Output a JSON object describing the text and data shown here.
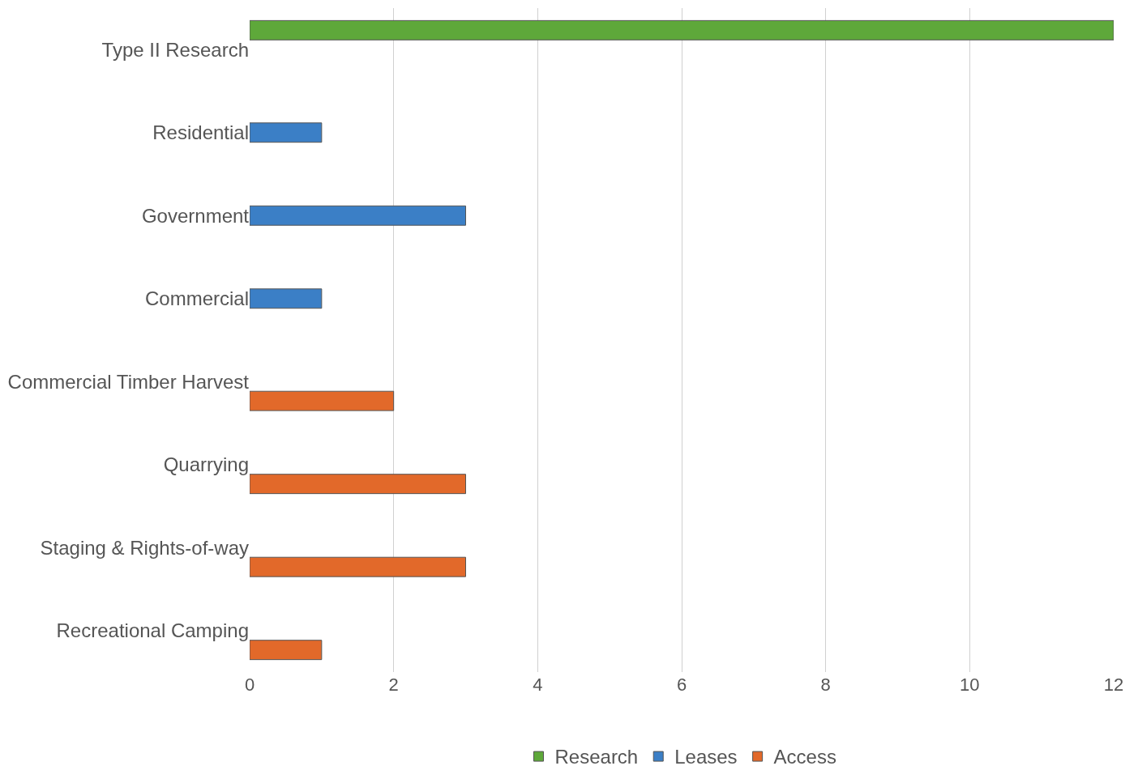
{
  "chart_data": {
    "type": "bar",
    "orientation": "horizontal",
    "categories": [
      "Type II Research",
      "Residential",
      "Government",
      "Commercial",
      "Commercial Timber Harvest",
      "Quarrying",
      "Staging & Rights-of-way",
      "Recreational Camping"
    ],
    "series": [
      {
        "name": "Research",
        "color": "#5ea83a",
        "values": [
          12,
          null,
          null,
          null,
          null,
          null,
          null,
          null
        ]
      },
      {
        "name": "Leases",
        "color": "#3b7fc6",
        "values": [
          null,
          1,
          3,
          1,
          null,
          null,
          null,
          null
        ]
      },
      {
        "name": "Access",
        "color": "#e2692a",
        "values": [
          null,
          null,
          null,
          null,
          2,
          3,
          3,
          1
        ]
      }
    ],
    "xlim": [
      0,
      12
    ],
    "xticks": [
      0,
      2,
      4,
      6,
      8,
      10,
      12
    ],
    "grid": "x",
    "legend": "bottom"
  }
}
